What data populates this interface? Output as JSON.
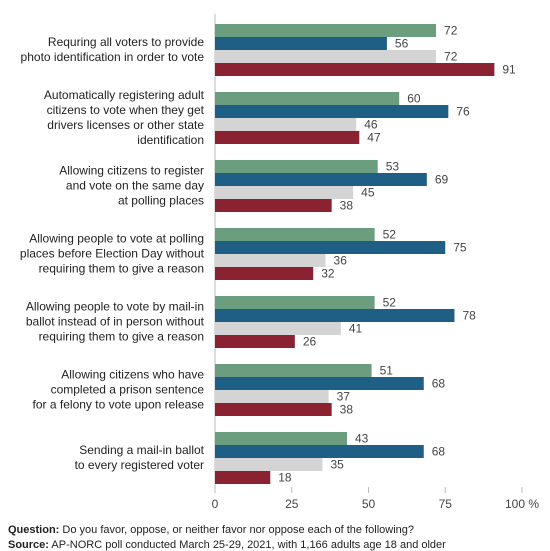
{
  "chart_data": {
    "type": "hbar",
    "categories": [
      "Requring all voters to provide\nphoto identification in order to vote",
      "Automatically registering adult\ncitizens to vote when they get\ndrivers licenses or other state\nidentification",
      "Allowing citizens to register\nand vote on the same day\nat polling places",
      "Allowing people to vote at polling\nplaces before Election Day without\nrequiring them to give a reason",
      "Allowing people to vote by mail-in\nballot instead of in person without\nrequiring them to give a reason",
      "Allowing citizens who have\ncompleted a prison sentence\nfor a felony to vote upon release",
      "Sending a mail-in ballot\nto every registered voter"
    ],
    "series": [
      {
        "color": "#6a9e7f",
        "values": [
          72,
          60,
          53,
          52,
          52,
          51,
          43
        ]
      },
      {
        "color": "#1f5f86",
        "values": [
          56,
          76,
          69,
          75,
          78,
          68,
          68
        ]
      },
      {
        "color": "#d4d4d4",
        "values": [
          72,
          46,
          45,
          36,
          41,
          37,
          35
        ]
      },
      {
        "color": "#8b2232",
        "values": [
          91,
          47,
          38,
          32,
          26,
          38,
          18
        ]
      }
    ],
    "xlim": [
      0,
      100
    ],
    "xticks": [
      0,
      25,
      50,
      75,
      {
        "value": 100,
        "label": "100 %"
      }
    ],
    "grid": false,
    "footer": {
      "question_label": "Question:",
      "question": "Do you favor, oppose, or neither favor nor oppose each of the following?",
      "source_label": "Source:",
      "source": "AP-NORC poll conducted March 25-29, 2021, with 1,166 adults age 18 and older"
    }
  }
}
